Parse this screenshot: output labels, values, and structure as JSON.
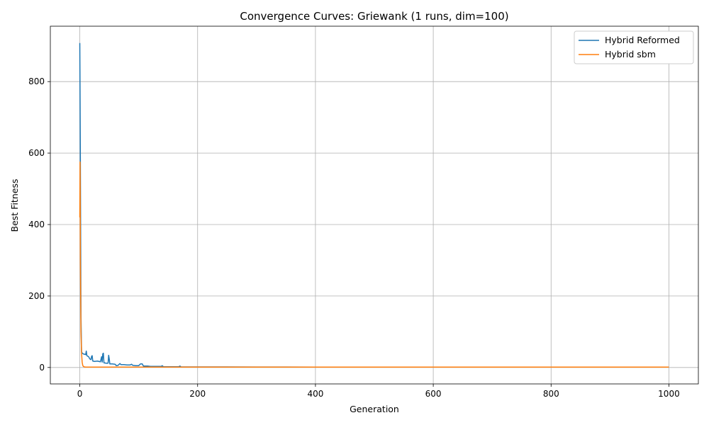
{
  "chart_data": {
    "type": "line",
    "title": "Convergence Curves: Griewank (1 runs, dim=100)",
    "xlabel": "Generation",
    "ylabel": "Best Fitness",
    "xlim": [
      -50,
      1050
    ],
    "ylim": [
      -46,
      955
    ],
    "xticks": [
      0,
      200,
      400,
      600,
      800,
      1000
    ],
    "yticks": [
      0,
      200,
      400,
      600,
      800
    ],
    "grid": true,
    "legend_position": "top-right",
    "series": [
      {
        "name": "Hybrid Reformed",
        "color": "#1f77b4",
        "points": [
          [
            0,
            908
          ],
          [
            1,
            560
          ],
          [
            2,
            140
          ],
          [
            3,
            45
          ],
          [
            4,
            40
          ],
          [
            6,
            38
          ],
          [
            8,
            37
          ],
          [
            10,
            36
          ],
          [
            11,
            46
          ],
          [
            12,
            33
          ],
          [
            15,
            30
          ],
          [
            17,
            24
          ],
          [
            19,
            22
          ],
          [
            20,
            31
          ],
          [
            21,
            33
          ],
          [
            22,
            18
          ],
          [
            25,
            17
          ],
          [
            30,
            18
          ],
          [
            35,
            16
          ],
          [
            37,
            30
          ],
          [
            38,
            15
          ],
          [
            39,
            38
          ],
          [
            40,
            40
          ],
          [
            41,
            13
          ],
          [
            45,
            12
          ],
          [
            48,
            12
          ],
          [
            49,
            34
          ],
          [
            50,
            24
          ],
          [
            51,
            10
          ],
          [
            55,
            10
          ],
          [
            60,
            9
          ],
          [
            62,
            5
          ],
          [
            65,
            6
          ],
          [
            68,
            11
          ],
          [
            70,
            8
          ],
          [
            75,
            8
          ],
          [
            80,
            7
          ],
          [
            85,
            7
          ],
          [
            88,
            9
          ],
          [
            90,
            6
          ],
          [
            95,
            5
          ],
          [
            100,
            5
          ],
          [
            103,
            10
          ],
          [
            106,
            10
          ],
          [
            108,
            4
          ],
          [
            115,
            4
          ],
          [
            120,
            3
          ],
          [
            125,
            3
          ],
          [
            130,
            3
          ],
          [
            138,
            3
          ],
          [
            140,
            5
          ],
          [
            142,
            2
          ],
          [
            150,
            2
          ],
          [
            168,
            2
          ],
          [
            170,
            4
          ],
          [
            172,
            1.5
          ],
          [
            200,
            1.5
          ],
          [
            250,
            1.5
          ],
          [
            300,
            1.4
          ],
          [
            350,
            1.3
          ],
          [
            400,
            1.2
          ],
          [
            450,
            1.1
          ],
          [
            500,
            1.05
          ],
          [
            600,
            1.03
          ],
          [
            700,
            1.02
          ],
          [
            800,
            1.01
          ],
          [
            900,
            1.01
          ],
          [
            1000,
            1.0
          ]
        ]
      },
      {
        "name": "Hybrid sbm",
        "color": "#ff7f0e",
        "points": [
          [
            0,
            420
          ],
          [
            0.5,
            575
          ],
          [
            1,
            300
          ],
          [
            2,
            100
          ],
          [
            3,
            40
          ],
          [
            4,
            15
          ],
          [
            5,
            6
          ],
          [
            6,
            3
          ],
          [
            8,
            1.5
          ],
          [
            10,
            1
          ],
          [
            20,
            1
          ],
          [
            50,
            1
          ],
          [
            100,
            1
          ],
          [
            200,
            1
          ],
          [
            400,
            1
          ],
          [
            600,
            1
          ],
          [
            800,
            1
          ],
          [
            1000,
            1
          ]
        ]
      }
    ]
  }
}
